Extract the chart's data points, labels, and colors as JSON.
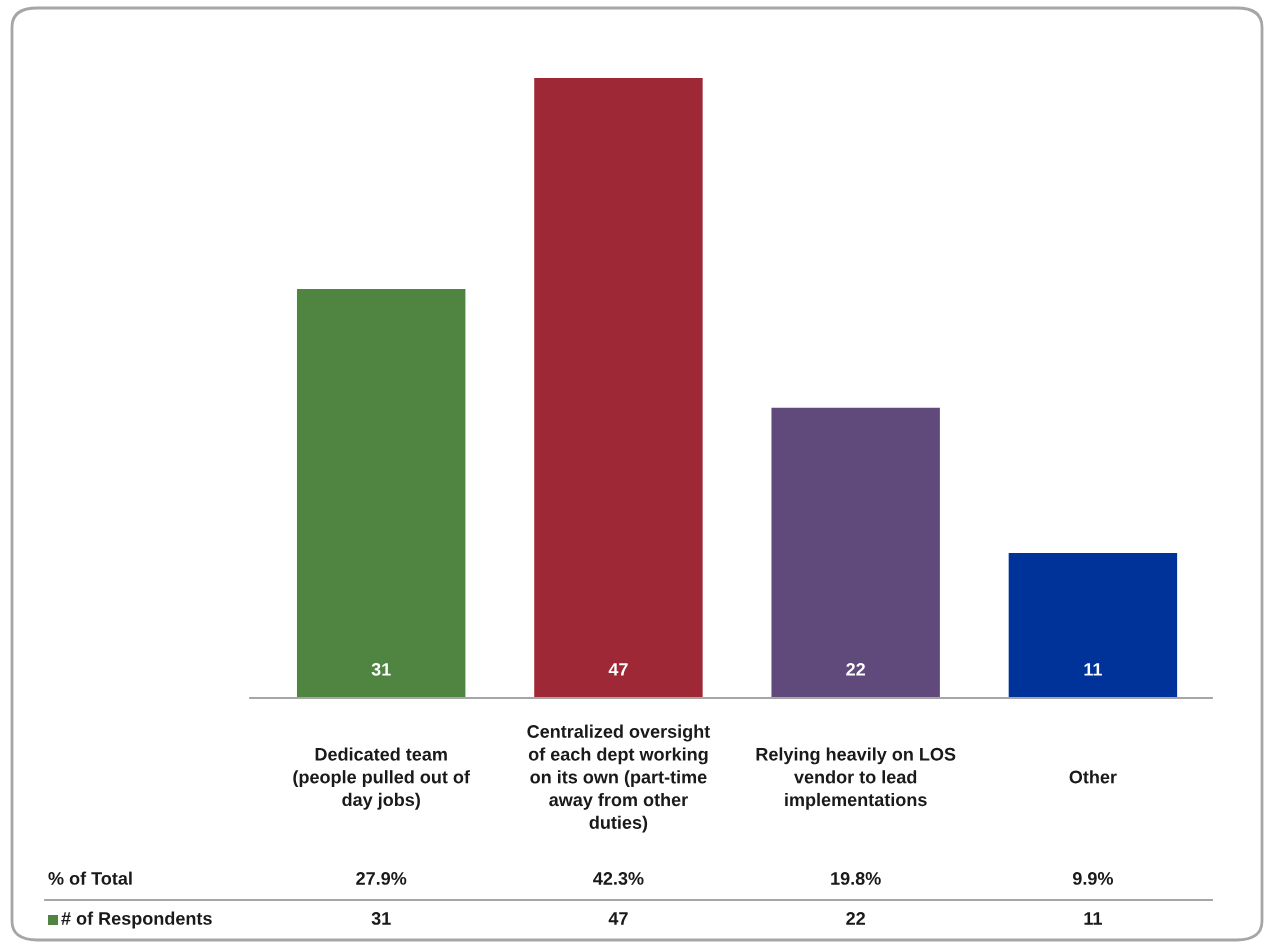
{
  "chart_data": {
    "type": "bar",
    "categories": [
      "Dedicated team\n(people pulled out of\nday jobs)",
      "Centralized oversight\nof each dept working\non its own (part-time\naway from other\nduties)",
      "Relying heavily on LOS\nvendor to lead\nimplementations",
      "Other"
    ],
    "series": [
      {
        "name": "# of Respondents",
        "color": "#508541",
        "colors": [
          "#508541",
          "#9e2836",
          "#604a7b",
          "#003399"
        ],
        "values": [
          31,
          47,
          22,
          11
        ]
      }
    ],
    "data_labels": true,
    "legend": "bottom",
    "grid": false,
    "annotations": [
      "% of Total",
      "27.9%",
      "42.3%",
      "19.8%",
      "9.9%",
      "31",
      "47",
      "22",
      "11"
    ]
  }
}
